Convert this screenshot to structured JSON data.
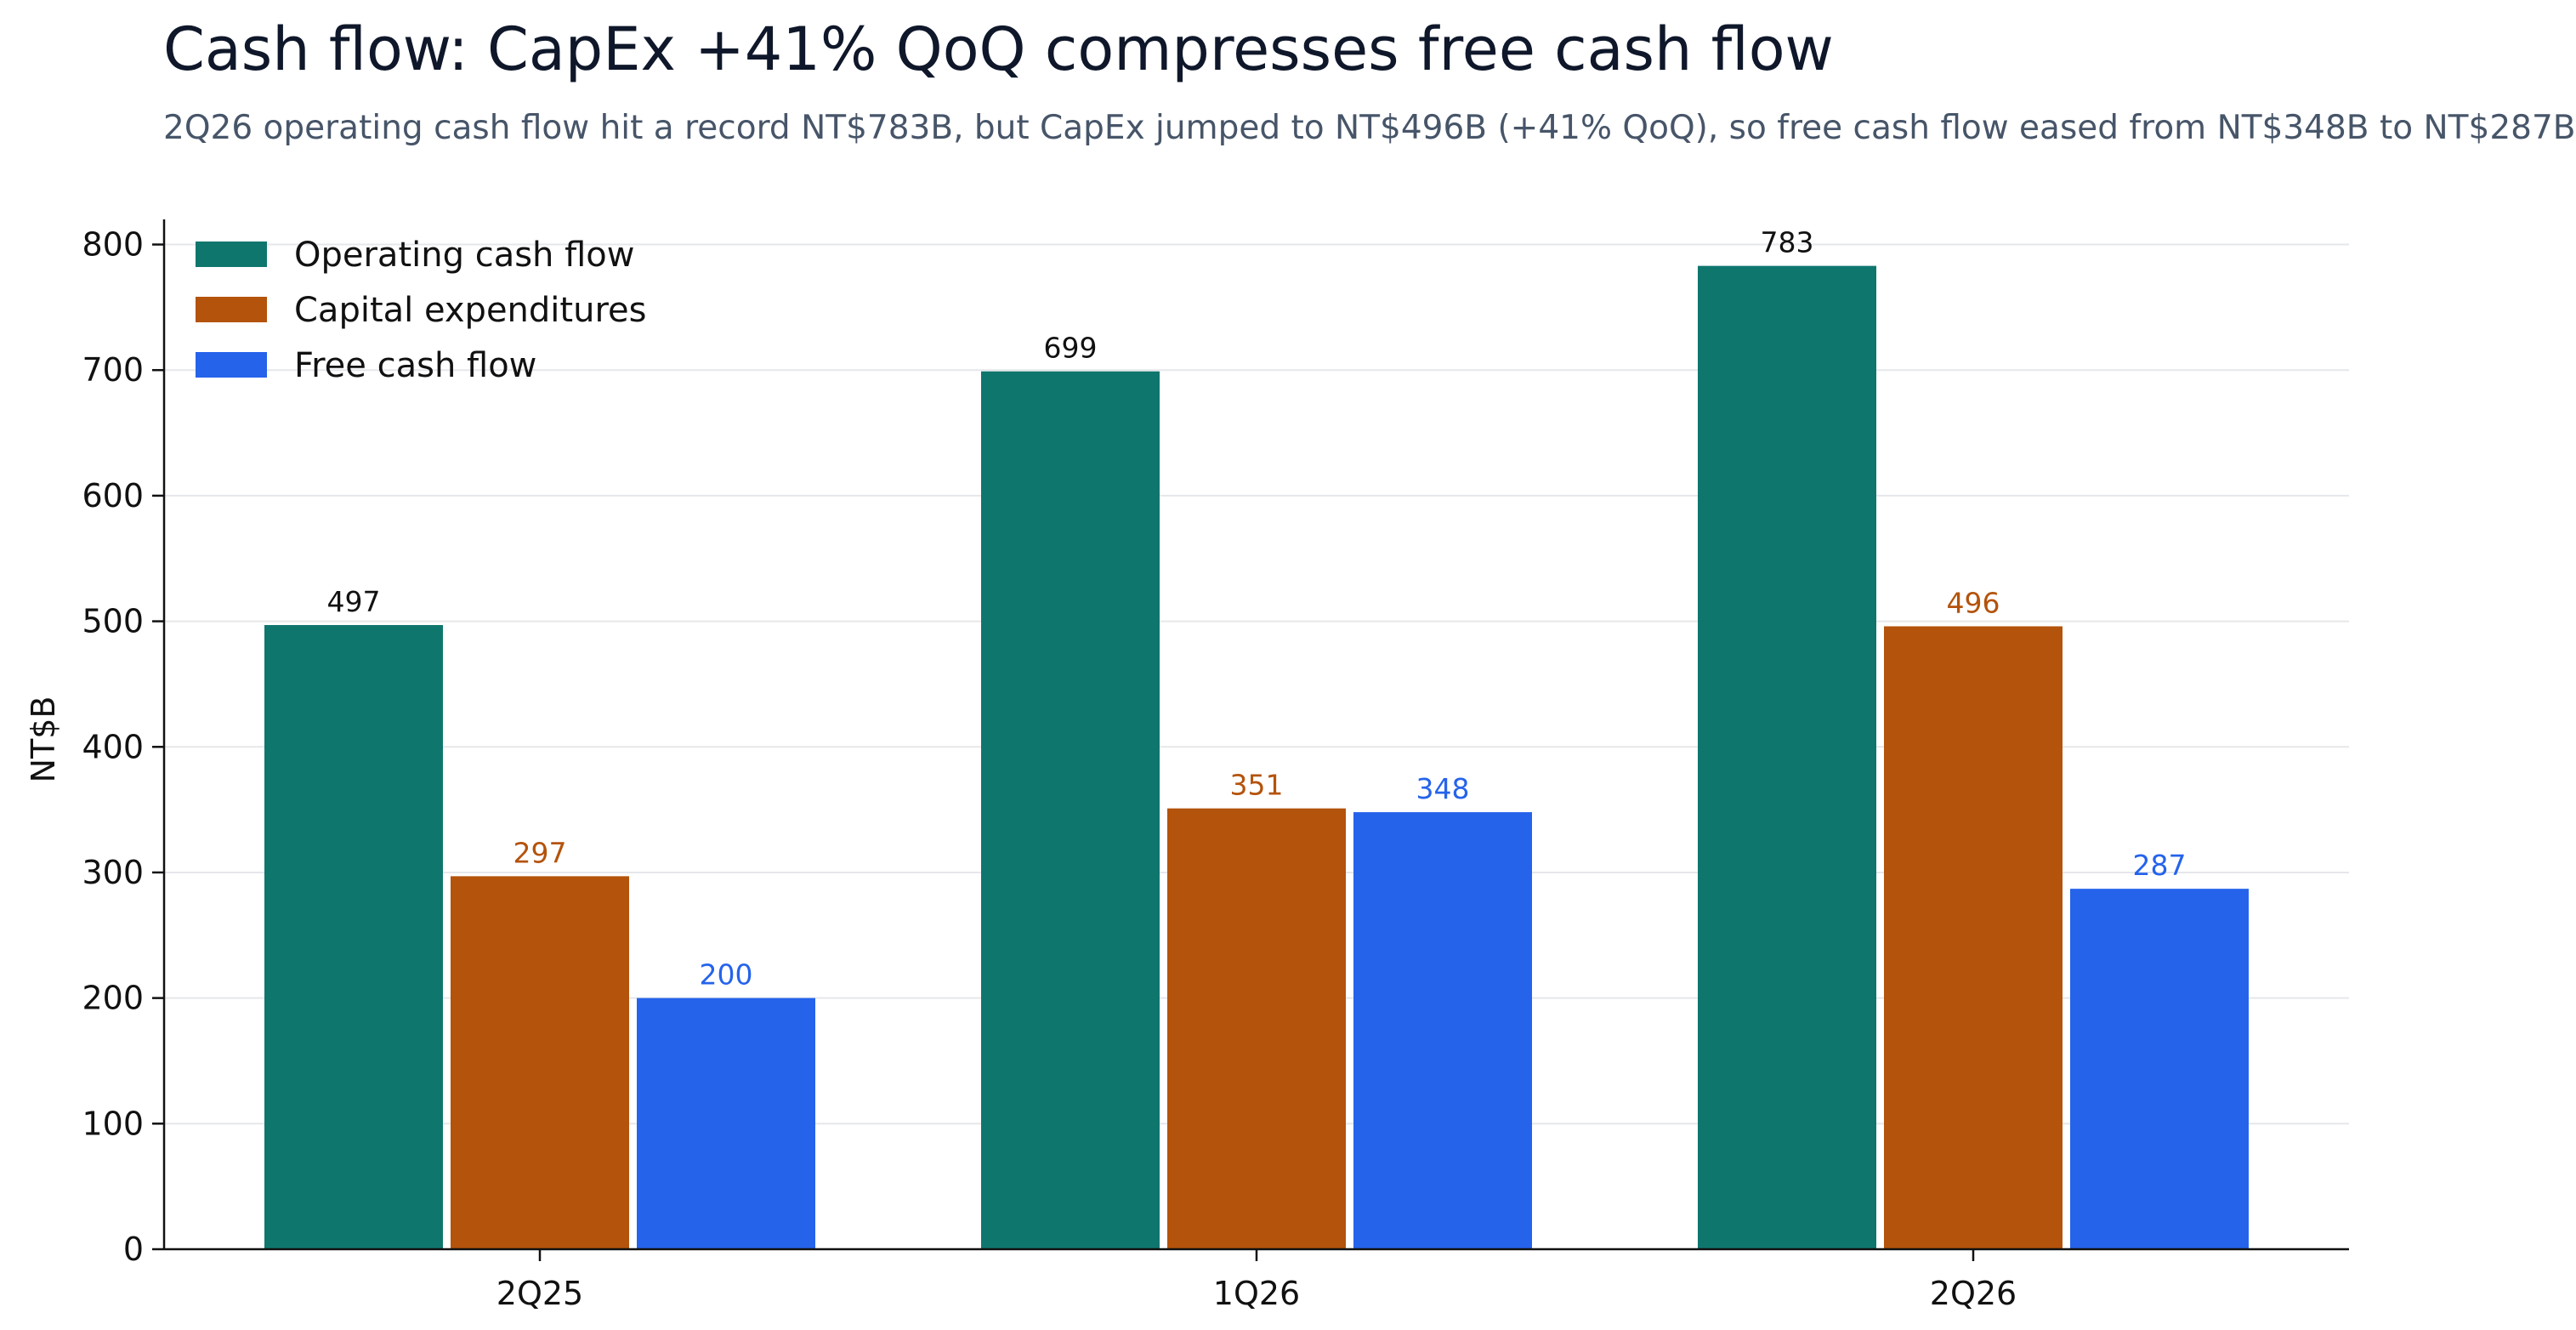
{
  "title": "Cash flow: CapEx +41% QoQ compresses free cash flow",
  "subtitle": "2Q26 operating cash flow hit a record NT$783B, but CapEx jumped to NT$496B (+41% QoQ), so free cash flow eased from NT$348B to NT$287B",
  "chart_data": {
    "type": "bar",
    "title": "Cash flow: CapEx +41% QoQ compresses free cash flow",
    "subtitle": "2Q26 operating cash flow hit a record NT$783B, but CapEx jumped to NT$496B (+41% QoQ), so free cash flow eased from NT$348B to NT$287B",
    "xlabel": "",
    "ylabel": "NT$B",
    "ylim": [
      0,
      820
    ],
    "yticks": [
      0,
      100,
      200,
      300,
      400,
      500,
      600,
      700,
      800
    ],
    "grid": "horizontal",
    "legend_position": "top-left",
    "categories": [
      "2Q25",
      "1Q26",
      "2Q26"
    ],
    "series": [
      {
        "name": "Operating cash flow",
        "values": [
          497,
          699,
          783
        ],
        "color": "#0f766e",
        "label_color": "#111111"
      },
      {
        "name": "Capital expenditures",
        "values": [
          297,
          351,
          496
        ],
        "color": "#b4530b",
        "label_color": "#b4530b"
      },
      {
        "name": "Free cash flow",
        "values": [
          200,
          348,
          287
        ],
        "color": "#2563eb",
        "label_color": "#2563eb"
      }
    ]
  }
}
